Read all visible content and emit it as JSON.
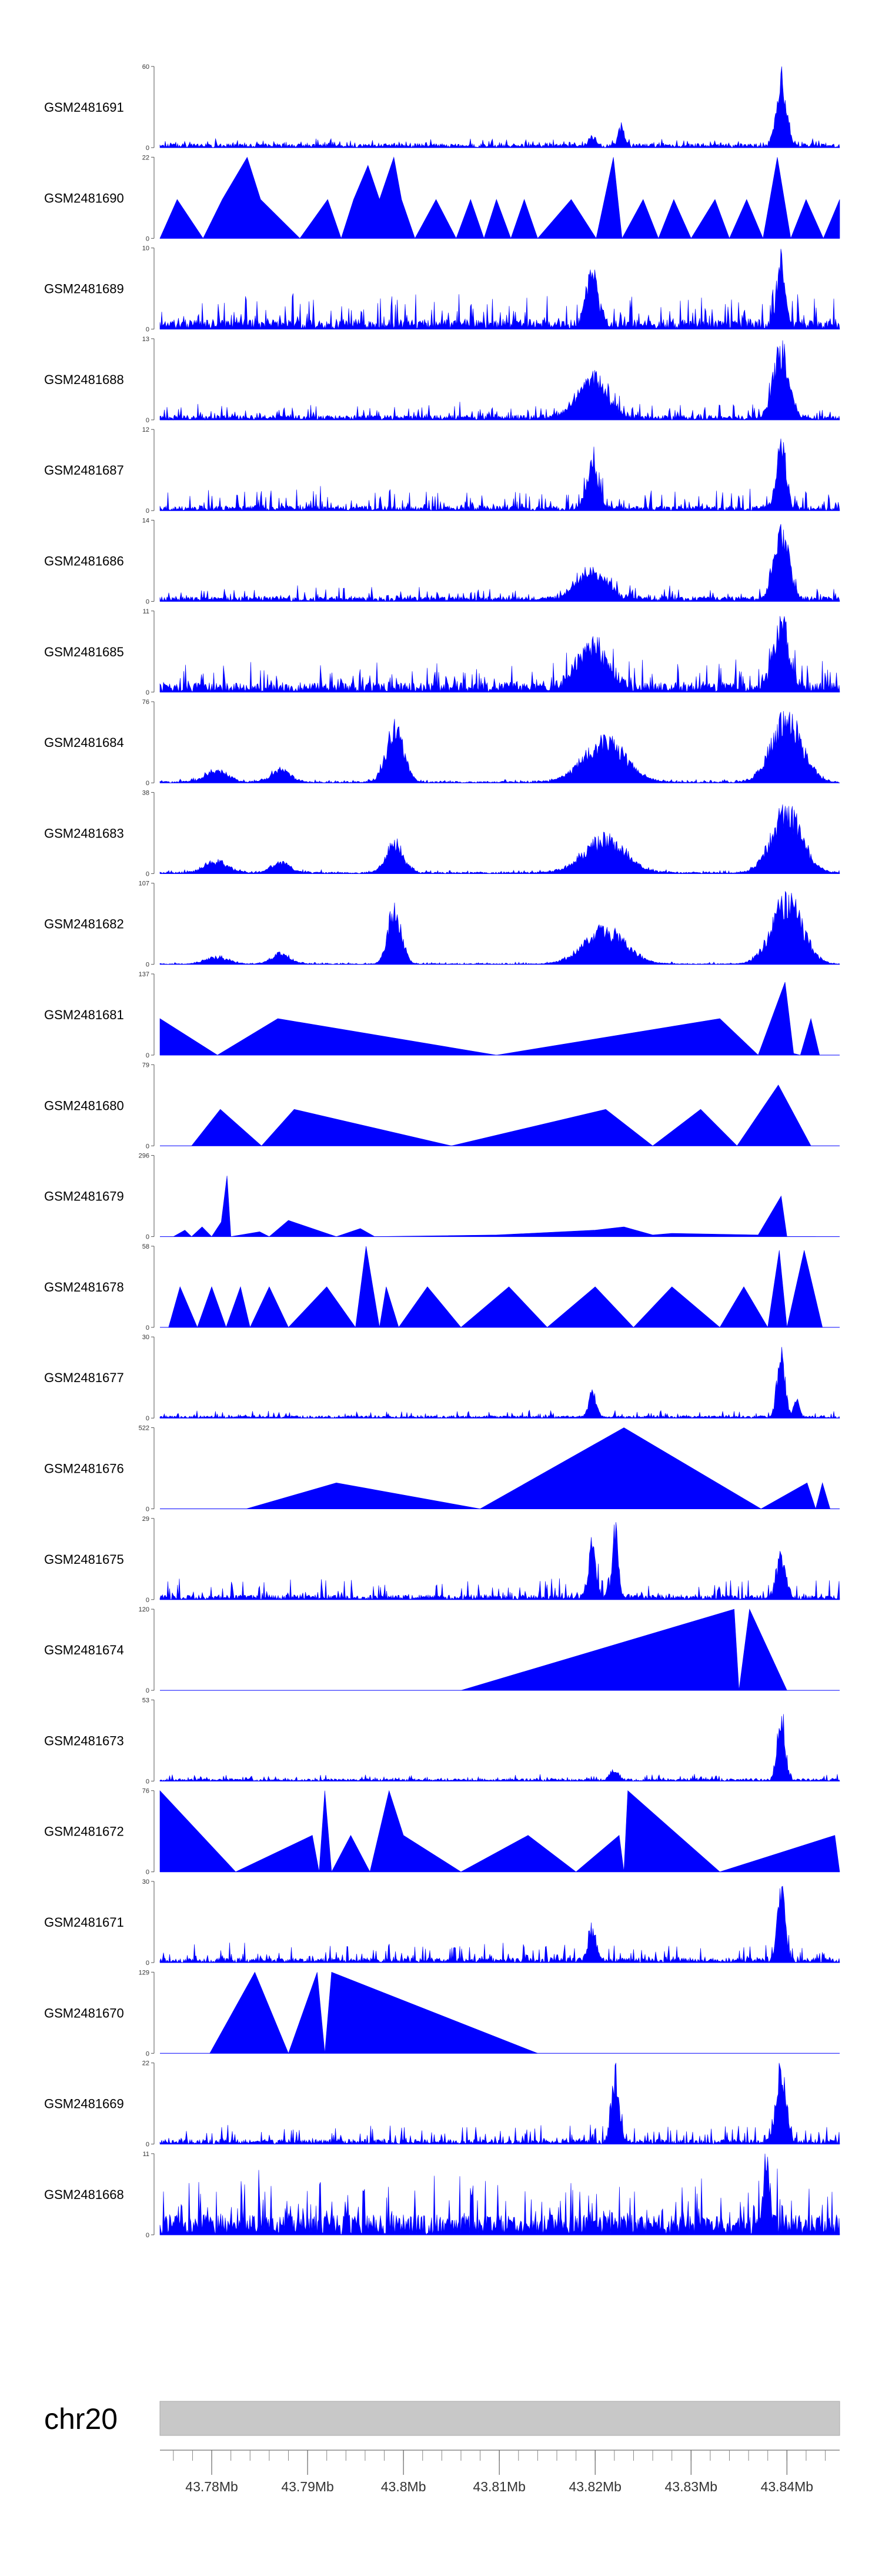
{
  "chart_data": {
    "type": "area",
    "chromosome": "chr20",
    "x_range_mb": [
      43.7746,
      43.8455
    ],
    "x_ticks": [
      43.78,
      43.79,
      43.8,
      43.81,
      43.82,
      43.83,
      43.84
    ],
    "x_tick_labels": [
      "43.78Mb",
      "43.79Mb",
      "43.8Mb",
      "43.81Mb",
      "43.82Mb",
      "43.83Mb",
      "43.84Mb"
    ],
    "minor_tick_step_mb": 0.002,
    "color": "#0000ff",
    "tracks": [
      {
        "name": "GSM2481691",
        "ymin": "0",
        "ymax": "60",
        "vmax": 60,
        "style": "noise",
        "base": 0.05,
        "noise": 0.07,
        "peaks": [
          [
            43.8197,
            0.12,
            0.0004
          ],
          [
            43.8227,
            0.28,
            0.0003
          ],
          [
            43.8394,
            1.0,
            0.0005
          ]
        ]
      },
      {
        "name": "GSM2481690",
        "ymin": "0",
        "ymax": "22",
        "vmax": 22,
        "style": "tri",
        "pts": [
          [
            43.7746,
            0
          ],
          [
            43.7764,
            0.48
          ],
          [
            43.7791,
            0
          ],
          [
            43.7811,
            0.48
          ],
          [
            43.7837,
            1.0
          ],
          [
            43.7851,
            0.48
          ],
          [
            43.7892,
            0
          ],
          [
            43.7921,
            0.48
          ],
          [
            43.7935,
            0
          ],
          [
            43.7948,
            0.48
          ],
          [
            43.7963,
            0.9
          ],
          [
            43.7975,
            0.48
          ],
          [
            43.799,
            1.0
          ],
          [
            43.7998,
            0.48
          ],
          [
            43.8012,
            0
          ],
          [
            43.8034,
            0.48
          ],
          [
            43.8055,
            0
          ],
          [
            43.807,
            0.48
          ],
          [
            43.8084,
            0
          ],
          [
            43.8097,
            0.48
          ],
          [
            43.8112,
            0
          ],
          [
            43.8126,
            0.48
          ],
          [
            43.814,
            0
          ],
          [
            43.8175,
            0.48
          ],
          [
            43.8201,
            0
          ],
          [
            43.8219,
            1.0
          ],
          [
            43.8228,
            0
          ],
          [
            43.825,
            0.48
          ],
          [
            43.8266,
            0
          ],
          [
            43.8282,
            0.48
          ],
          [
            43.83,
            0
          ],
          [
            43.8325,
            0.48
          ],
          [
            43.834,
            0
          ],
          [
            43.8358,
            0.48
          ],
          [
            43.8375,
            0
          ],
          [
            43.839,
            1.0
          ],
          [
            43.8404,
            0
          ],
          [
            43.842,
            0.48
          ],
          [
            43.8438,
            0
          ],
          [
            43.8455,
            0.48
          ]
        ]
      },
      {
        "name": "GSM2481689",
        "ymin": "0",
        "ymax": "10",
        "vmax": 10,
        "style": "noise",
        "base": 0.12,
        "noise": 0.35,
        "peaks": [
          [
            43.8197,
            0.75,
            0.0006
          ],
          [
            43.8394,
            1.0,
            0.0004
          ]
        ]
      },
      {
        "name": "GSM2481688",
        "ymin": "0",
        "ymax": "13",
        "vmax": 13,
        "style": "noise",
        "base": 0.06,
        "noise": 0.18,
        "peaks": [
          [
            43.8197,
            0.6,
            0.0015
          ],
          [
            43.8394,
            1.0,
            0.0008
          ]
        ]
      },
      {
        "name": "GSM2481687",
        "ymin": "0",
        "ymax": "12",
        "vmax": 12,
        "style": "noise",
        "base": 0.06,
        "noise": 0.25,
        "peaks": [
          [
            43.8197,
            0.6,
            0.0006
          ],
          [
            43.8394,
            1.0,
            0.0005
          ]
        ]
      },
      {
        "name": "GSM2481686",
        "ymin": "0",
        "ymax": "14",
        "vmax": 14,
        "style": "noise",
        "base": 0.06,
        "noise": 0.14,
        "peaks": [
          [
            43.8197,
            0.45,
            0.0015
          ],
          [
            43.8394,
            1.0,
            0.0008
          ]
        ]
      },
      {
        "name": "GSM2481685",
        "ymin": "0",
        "ymax": "11",
        "vmax": 11,
        "style": "noise",
        "base": 0.12,
        "noise": 0.32,
        "peaks": [
          [
            43.8197,
            0.65,
            0.0015
          ],
          [
            43.8394,
            0.95,
            0.0008
          ]
        ]
      },
      {
        "name": "GSM2481684",
        "ymin": "0",
        "ymax": "76",
        "vmax": 76,
        "style": "noise",
        "base": 0.02,
        "noise": 0.03,
        "peaks": [
          [
            43.7805,
            0.18,
            0.0012
          ],
          [
            43.7872,
            0.18,
            0.001
          ],
          [
            43.7991,
            0.8,
            0.0009
          ],
          [
            43.821,
            0.6,
            0.0022
          ],
          [
            43.84,
            0.95,
            0.0016
          ]
        ]
      },
      {
        "name": "GSM2481683",
        "ymin": "0",
        "ymax": "38",
        "vmax": 38,
        "style": "noise",
        "base": 0.02,
        "noise": 0.03,
        "peaks": [
          [
            43.7805,
            0.18,
            0.0012
          ],
          [
            43.7872,
            0.15,
            0.001
          ],
          [
            43.7991,
            0.45,
            0.0009
          ],
          [
            43.821,
            0.5,
            0.0022
          ],
          [
            43.84,
            0.9,
            0.0016
          ]
        ]
      },
      {
        "name": "GSM2481682",
        "ymin": "0",
        "ymax": "107",
        "vmax": 107,
        "style": "noise",
        "base": 0.01,
        "noise": 0.02,
        "peaks": [
          [
            43.7805,
            0.1,
            0.0012
          ],
          [
            43.7872,
            0.15,
            0.001
          ],
          [
            43.7991,
            0.85,
            0.0007
          ],
          [
            43.821,
            0.5,
            0.0022
          ],
          [
            43.84,
            0.95,
            0.0016
          ]
        ]
      },
      {
        "name": "GSM2481681",
        "ymin": "0",
        "ymax": "137",
        "vmax": 137,
        "style": "tri",
        "pts": [
          [
            43.7746,
            0.45
          ],
          [
            43.7806,
            0
          ],
          [
            43.7869,
            0.45
          ],
          [
            43.8097,
            0
          ],
          [
            43.833,
            0.45
          ],
          [
            43.837,
            0
          ],
          [
            43.8398,
            0.9
          ],
          [
            43.8407,
            0.02
          ],
          [
            43.8414,
            0
          ],
          [
            43.8425,
            0.45
          ],
          [
            43.8434,
            0
          ]
        ]
      },
      {
        "name": "GSM2481680",
        "ymin": "0",
        "ymax": "79",
        "vmax": 79,
        "style": "tri",
        "pts": [
          [
            43.7779,
            0
          ],
          [
            43.7809,
            0.45
          ],
          [
            43.7852,
            0
          ],
          [
            43.7886,
            0.45
          ],
          [
            43.805,
            0
          ],
          [
            43.8211,
            0.45
          ],
          [
            43.826,
            0
          ],
          [
            43.831,
            0.45
          ],
          [
            43.8348,
            0
          ],
          [
            43.8391,
            0.75
          ],
          [
            43.8425,
            0
          ]
        ]
      },
      {
        "name": "GSM2481679",
        "ymin": "0",
        "ymax": "296",
        "vmax": 296,
        "style": "tri",
        "pts": [
          [
            43.776,
            0
          ],
          [
            43.7772,
            0.08
          ],
          [
            43.7779,
            0
          ],
          [
            43.779,
            0.12
          ],
          [
            43.78,
            0
          ],
          [
            43.781,
            0.18
          ],
          [
            43.7816,
            0.75
          ],
          [
            43.782,
            0
          ],
          [
            43.785,
            0.06
          ],
          [
            43.786,
            0
          ],
          [
            43.788,
            0.2
          ],
          [
            43.793,
            0
          ],
          [
            43.7955,
            0.1
          ],
          [
            43.797,
            0
          ],
          [
            43.8097,
            0.02
          ],
          [
            43.82,
            0.08
          ],
          [
            43.8215,
            0.1
          ],
          [
            43.823,
            0.12
          ],
          [
            43.826,
            0.02
          ],
          [
            43.828,
            0.04
          ],
          [
            43.837,
            0.02
          ],
          [
            43.8394,
            0.5
          ],
          [
            43.84,
            0
          ],
          [
            43.843,
            0
          ]
        ]
      },
      {
        "name": "GSM2481678",
        "ymin": "0",
        "ymax": "58",
        "vmax": 58,
        "style": "tri",
        "pts": [
          [
            43.7755,
            0
          ],
          [
            43.7767,
            0.5
          ],
          [
            43.7785,
            0
          ],
          [
            43.78,
            0.5
          ],
          [
            43.7815,
            0
          ],
          [
            43.783,
            0.5
          ],
          [
            43.784,
            0
          ],
          [
            43.786,
            0.5
          ],
          [
            43.788,
            0
          ],
          [
            43.792,
            0.5
          ],
          [
            43.795,
            0
          ],
          [
            43.7961,
            1.0
          ],
          [
            43.7975,
            0
          ],
          [
            43.7982,
            0.5
          ],
          [
            43.7995,
            0
          ],
          [
            43.8025,
            0.5
          ],
          [
            43.806,
            0
          ],
          [
            43.811,
            0.5
          ],
          [
            43.815,
            0
          ],
          [
            43.82,
            0.5
          ],
          [
            43.824,
            0
          ],
          [
            43.828,
            0.5
          ],
          [
            43.833,
            0
          ],
          [
            43.8355,
            0.5
          ],
          [
            43.838,
            0
          ],
          [
            43.8392,
            0.95
          ],
          [
            43.84,
            0
          ],
          [
            43.8418,
            0.95
          ],
          [
            43.8437,
            0
          ]
        ]
      },
      {
        "name": "GSM2481677",
        "ymin": "0",
        "ymax": "30",
        "vmax": 30,
        "style": "noise",
        "base": 0.03,
        "noise": 0.07,
        "peaks": [
          [
            43.8197,
            0.35,
            0.0004
          ],
          [
            43.8394,
            1.0,
            0.0004
          ],
          [
            43.841,
            0.25,
            0.0003
          ]
        ]
      },
      {
        "name": "GSM2481676",
        "ymin": "0",
        "ymax": "522",
        "vmax": 522,
        "style": "tri",
        "pts": [
          [
            43.7836,
            0
          ],
          [
            43.793,
            0.32
          ],
          [
            43.808,
            0
          ],
          [
            43.823,
            1.0
          ],
          [
            43.8373,
            0
          ],
          [
            43.8421,
            0.32
          ],
          [
            43.843,
            0
          ],
          [
            43.8437,
            0.32
          ],
          [
            43.8445,
            0
          ]
        ]
      },
      {
        "name": "GSM2481675",
        "ymin": "0",
        "ymax": "29",
        "vmax": 29,
        "style": "noise",
        "base": 0.06,
        "noise": 0.22,
        "peaks": [
          [
            43.8197,
            0.75,
            0.0004
          ],
          [
            43.8221,
            1.0,
            0.0003
          ],
          [
            43.8394,
            0.55,
            0.0005
          ]
        ]
      },
      {
        "name": "GSM2481674",
        "ymin": "0",
        "ymax": "120",
        "vmax": 120,
        "style": "tri",
        "pts": [
          [
            43.806,
            0
          ],
          [
            43.8345,
            1.0
          ],
          [
            43.835,
            0
          ],
          [
            43.8361,
            1.0
          ],
          [
            43.84,
            0
          ]
        ]
      },
      {
        "name": "GSM2481673",
        "ymin": "0",
        "ymax": "53",
        "vmax": 53,
        "style": "noise",
        "base": 0.03,
        "noise": 0.06,
        "peaks": [
          [
            43.822,
            0.15,
            0.0004
          ],
          [
            43.8394,
            1.0,
            0.0004
          ]
        ]
      },
      {
        "name": "GSM2481672",
        "ymin": "0",
        "ymax": "76",
        "vmax": 76,
        "style": "tri",
        "pts": [
          [
            43.7746,
            1.0
          ],
          [
            43.7825,
            0
          ],
          [
            43.7905,
            0.45
          ],
          [
            43.7912,
            0
          ],
          [
            43.7918,
            1.0
          ],
          [
            43.7925,
            0
          ],
          [
            43.7945,
            0.45
          ],
          [
            43.7965,
            0
          ],
          [
            43.7985,
            1.0
          ],
          [
            43.8,
            0.45
          ],
          [
            43.806,
            0
          ],
          [
            43.813,
            0.45
          ],
          [
            43.818,
            0
          ],
          [
            43.8225,
            0.45
          ],
          [
            43.823,
            0
          ],
          [
            43.8234,
            1.0
          ],
          [
            43.833,
            0
          ],
          [
            43.845,
            0.45
          ],
          [
            43.8455,
            0
          ]
        ]
      },
      {
        "name": "GSM2481671",
        "ymin": "0",
        "ymax": "30",
        "vmax": 30,
        "style": "noise",
        "base": 0.06,
        "noise": 0.2,
        "peaks": [
          [
            43.8197,
            0.45,
            0.0004
          ],
          [
            43.8394,
            1.0,
            0.0004
          ]
        ]
      },
      {
        "name": "GSM2481670",
        "ymin": "0",
        "ymax": "129",
        "vmax": 129,
        "style": "tri",
        "pts": [
          [
            43.7798,
            0
          ],
          [
            43.7845,
            1.0
          ],
          [
            43.788,
            0
          ],
          [
            43.791,
            1.0
          ],
          [
            43.7918,
            0
          ],
          [
            43.7925,
            1.0
          ],
          [
            43.814,
            0
          ]
        ]
      },
      {
        "name": "GSM2481669",
        "ymin": "0",
        "ymax": "22",
        "vmax": 22,
        "style": "noise",
        "base": 0.06,
        "noise": 0.2,
        "peaks": [
          [
            43.8221,
            1.0,
            0.0004
          ],
          [
            43.8394,
            1.0,
            0.0005
          ]
        ]
      },
      {
        "name": "GSM2481668",
        "ymin": "0",
        "ymax": "11",
        "vmax": 11,
        "style": "noise",
        "base": 0.25,
        "noise": 0.6,
        "peaks": [
          [
            43.8379,
            1.0,
            0.0003
          ]
        ]
      }
    ]
  }
}
